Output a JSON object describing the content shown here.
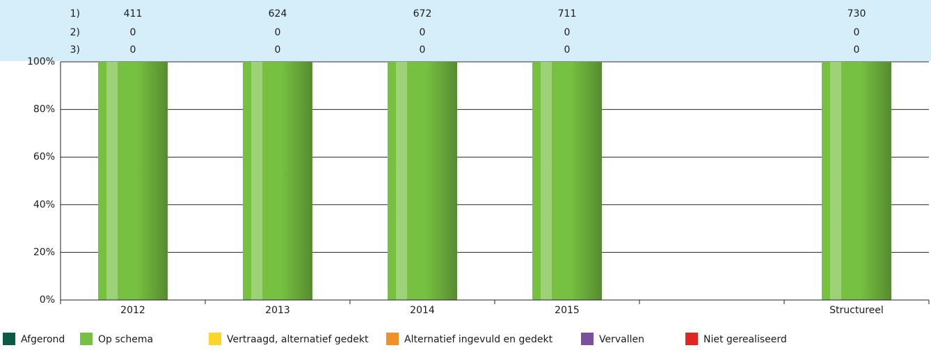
{
  "chart_data": {
    "type": "stacked_bar",
    "categories": [
      "2012",
      "2013",
      "2014",
      "2015",
      null,
      "Structureel"
    ],
    "table_rows": [
      {
        "label": "1)",
        "values": [
          411,
          624,
          672,
          711,
          null,
          730
        ]
      },
      {
        "label": "2)",
        "values": [
          0,
          0,
          0,
          0,
          null,
          0
        ]
      },
      {
        "label": "3)",
        "values": [
          0,
          0,
          0,
          0,
          null,
          0
        ]
      }
    ],
    "series": [
      {
        "name": "Afgerond",
        "color": "#0b5a45",
        "values": [
          0,
          0,
          0,
          0,
          null,
          0
        ]
      },
      {
        "name": "Op schema",
        "color": "#77c142",
        "values": [
          100,
          100,
          100,
          100,
          null,
          100
        ]
      },
      {
        "name": "Vertraagd, alternatief gedekt",
        "color": "#ffd52b",
        "values": [
          0,
          0,
          0,
          0,
          null,
          0
        ]
      },
      {
        "name": "Alternatief ingevuld en gedekt",
        "color": "#f39025",
        "values": [
          0,
          0,
          0,
          0,
          null,
          0
        ]
      },
      {
        "name": "Vervallen",
        "color": "#7b4f9e",
        "values": [
          0,
          0,
          0,
          0,
          null,
          0
        ]
      },
      {
        "name": "Niet gerealiseerd",
        "color": "#e2251e",
        "values": [
          0,
          0,
          0,
          0,
          null,
          0
        ]
      }
    ],
    "ylim": [
      0,
      100
    ],
    "yticks": [
      {
        "value": 0,
        "label": "0%"
      },
      {
        "value": 20,
        "label": "20%"
      },
      {
        "value": 40,
        "label": "40%"
      },
      {
        "value": 60,
        "label": "60%"
      },
      {
        "value": 80,
        "label": "80%"
      },
      {
        "value": 100,
        "label": "100%"
      }
    ],
    "grid": true
  }
}
